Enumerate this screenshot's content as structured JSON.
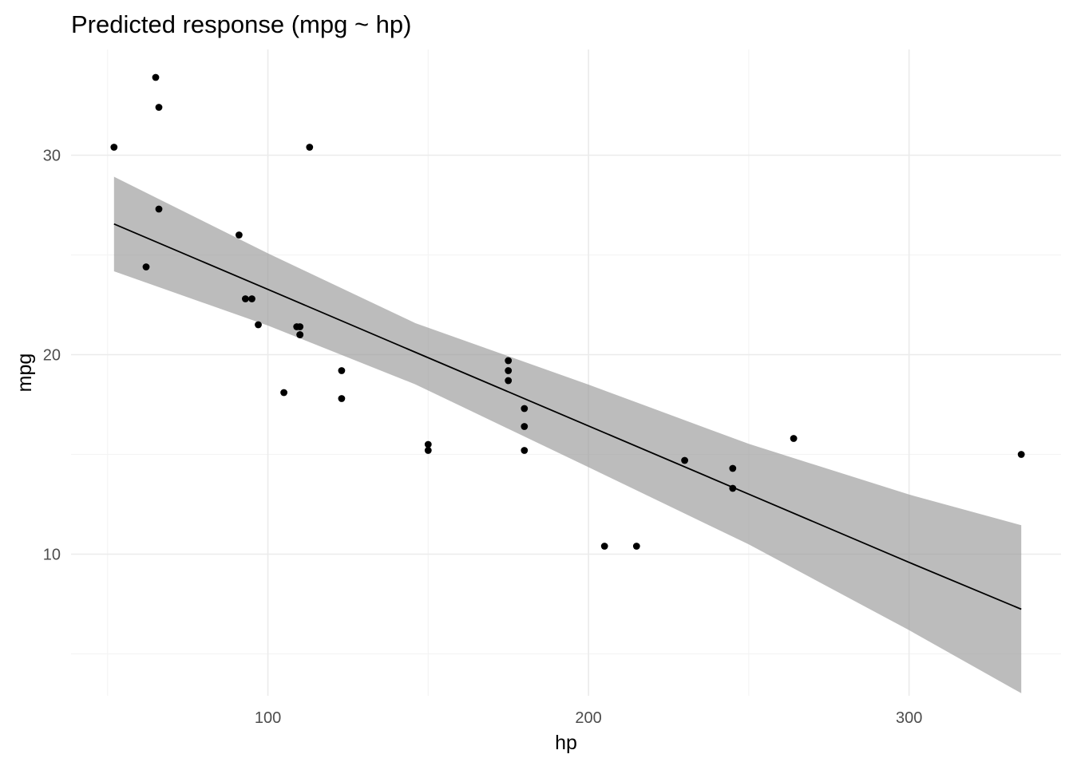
{
  "chart_data": {
    "type": "scatter",
    "title": "Predicted response (mpg ~ hp)",
    "xlabel": "hp",
    "ylabel": "mpg",
    "xlim": [
      38.6,
      347.4
    ],
    "ylim": [
      2.9,
      35.3
    ],
    "x_major_ticks": [
      100,
      200,
      300
    ],
    "x_minor_ticks": [
      50,
      150,
      250
    ],
    "y_major_ticks": [
      10,
      20,
      30
    ],
    "y_minor_ticks": [
      5,
      15,
      25
    ],
    "grid": true,
    "legend": "none",
    "colors": {
      "points": "#000000",
      "fit_line": "#000000",
      "band": "#999999"
    },
    "points": [
      {
        "x": 110,
        "y": 21.0
      },
      {
        "x": 110,
        "y": 21.0
      },
      {
        "x": 93,
        "y": 22.8
      },
      {
        "x": 110,
        "y": 21.4
      },
      {
        "x": 175,
        "y": 18.7
      },
      {
        "x": 105,
        "y": 18.1
      },
      {
        "x": 245,
        "y": 14.3
      },
      {
        "x": 62,
        "y": 24.4
      },
      {
        "x": 95,
        "y": 22.8
      },
      {
        "x": 123,
        "y": 19.2
      },
      {
        "x": 123,
        "y": 17.8
      },
      {
        "x": 180,
        "y": 16.4
      },
      {
        "x": 180,
        "y": 17.3
      },
      {
        "x": 180,
        "y": 15.2
      },
      {
        "x": 205,
        "y": 10.4
      },
      {
        "x": 215,
        "y": 10.4
      },
      {
        "x": 230,
        "y": 14.7
      },
      {
        "x": 66,
        "y": 32.4
      },
      {
        "x": 52,
        "y": 30.4
      },
      {
        "x": 65,
        "y": 33.9
      },
      {
        "x": 97,
        "y": 21.5
      },
      {
        "x": 150,
        "y": 15.5
      },
      {
        "x": 150,
        "y": 15.2
      },
      {
        "x": 245,
        "y": 13.3
      },
      {
        "x": 175,
        "y": 19.2
      },
      {
        "x": 66,
        "y": 27.3
      },
      {
        "x": 91,
        "y": 26.0
      },
      {
        "x": 113,
        "y": 30.4
      },
      {
        "x": 264,
        "y": 15.8
      },
      {
        "x": 175,
        "y": 19.7
      },
      {
        "x": 335,
        "y": 15.0
      },
      {
        "x": 109,
        "y": 21.4
      }
    ],
    "fit": {
      "x": [
        52,
        100,
        146,
        200,
        250,
        300,
        335
      ],
      "y": [
        26.55,
        23.27,
        20.12,
        16.43,
        13.01,
        9.59,
        7.24
      ],
      "lower": [
        24.18,
        21.46,
        18.51,
        14.36,
        10.49,
        6.19,
        3.03
      ],
      "upper": [
        28.92,
        25.08,
        21.58,
        18.5,
        15.53,
        12.99,
        11.45
      ]
    }
  }
}
